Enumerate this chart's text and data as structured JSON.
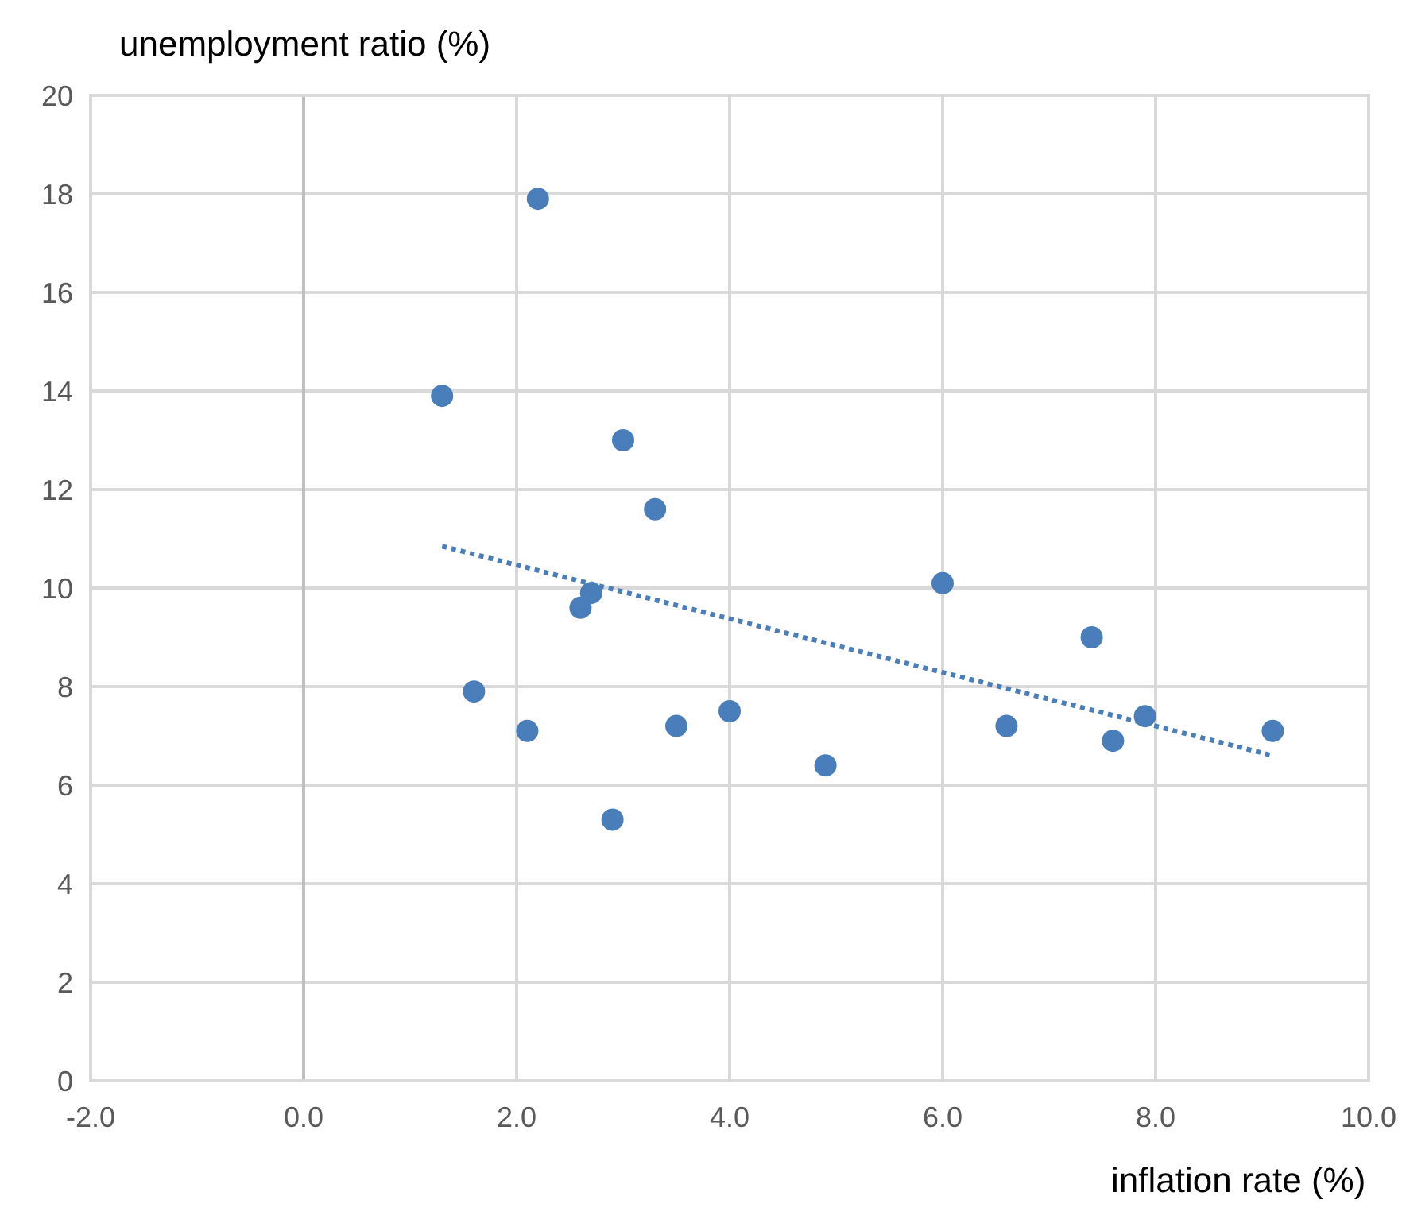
{
  "chart_data": {
    "type": "scatter",
    "xlabel": "inflation rate (%)",
    "ylabel": "unemployment ratio (%)",
    "series": [
      {
        "color": "#4a7ebb",
        "marker": "circle",
        "x": [
          2.2,
          1.3,
          3.0,
          3.3,
          2.7,
          2.6,
          1.6,
          2.1,
          2.9,
          3.5,
          4.0,
          4.9,
          6.0,
          6.6,
          7.4,
          7.6,
          7.9,
          9.1
        ],
        "values": [
          17.9,
          13.9,
          13.0,
          11.6,
          9.9,
          9.6,
          7.9,
          7.1,
          5.3,
          7.2,
          7.5,
          6.4,
          10.1,
          7.2,
          9.0,
          6.9,
          7.4,
          7.1
        ]
      },
      {
        "type": "line",
        "color": "#4a7ebb",
        "line_style": "dotted",
        "x": [
          1.3,
          9.1
        ],
        "values": [
          10.85,
          6.6
        ]
      }
    ],
    "xlim": [
      -2,
      10
    ],
    "xticks": [
      {
        "value": -2,
        "label": "-2.0"
      },
      {
        "value": 0,
        "label": "0.0"
      },
      {
        "value": 2,
        "label": "2.0"
      },
      {
        "value": 4,
        "label": "4.0"
      },
      {
        "value": 6,
        "label": "6.0"
      },
      {
        "value": 8,
        "label": "8.0"
      },
      {
        "value": 10,
        "label": "10.0"
      }
    ],
    "ylim": [
      0,
      20
    ],
    "yticks": [
      0,
      2,
      4,
      6,
      8,
      10,
      12,
      14,
      16,
      18,
      20
    ],
    "grid": true,
    "legend": false
  }
}
